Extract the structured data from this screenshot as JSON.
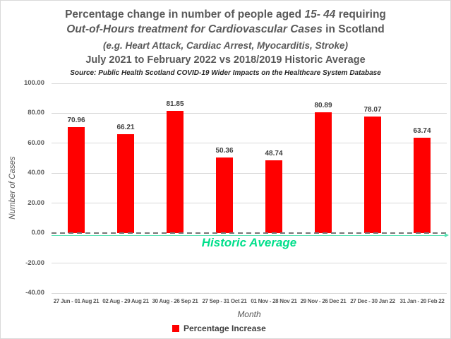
{
  "chart_data": {
    "type": "bar",
    "title_rich": {
      "line1_prefix": "Percentage change in number of people aged ",
      "line1_italic": "15- 44",
      "line1_suffix": " requiring",
      "line2_italic": "Out-of-Hours treatment for Cardiovascular Cases",
      "line2_suffix": " in Scotland",
      "line3": "(e.g. Heart Attack, Cardiac Arrest, Myocarditis, Stroke)",
      "line4": "July 2021 to February 2022 vs 2018/2019 Historic Average"
    },
    "source": "Source: Public Health Scotland COVID-19 Wider Impacts on the Healthcare System Database",
    "categories": [
      "27 Jun - 01 Aug 21",
      "02 Aug - 29 Aug 21",
      "30 Aug - 26 Sep 21",
      "27 Sep - 31 Oct 21",
      "01 Nov - 28 Nov 21",
      "29 Nov - 26 Dec 21",
      "27 Dec - 30 Jan 22",
      "31 Jan - 20 Feb 22"
    ],
    "values": [
      70.96,
      66.21,
      81.85,
      50.36,
      48.74,
      80.89,
      78.07,
      63.74
    ],
    "value_labels": [
      "70.96",
      "66.21",
      "81.85",
      "50.36",
      "48.74",
      "80.89",
      "78.07",
      "63.74"
    ],
    "xlabel": "Month",
    "ylabel": "Number of Cases",
    "ylim": [
      -40,
      100
    ],
    "ytick_labels": [
      "100.00",
      "80.00",
      "60.00",
      "40.00",
      "20.00",
      "0.00",
      "-20.00",
      "-40.00"
    ],
    "grid": true,
    "legend": {
      "label": "Percentage Increase",
      "position": "bottom"
    },
    "annotation": {
      "text": "Historic Average",
      "at_value": 0
    },
    "colors": {
      "bar": "#ff0000",
      "annotation_text": "#00df8b",
      "annotation_line": "#57e2b3",
      "title_gray": "#595959",
      "gridline": "#d9d9d9",
      "zero_dash": "#767676"
    }
  }
}
